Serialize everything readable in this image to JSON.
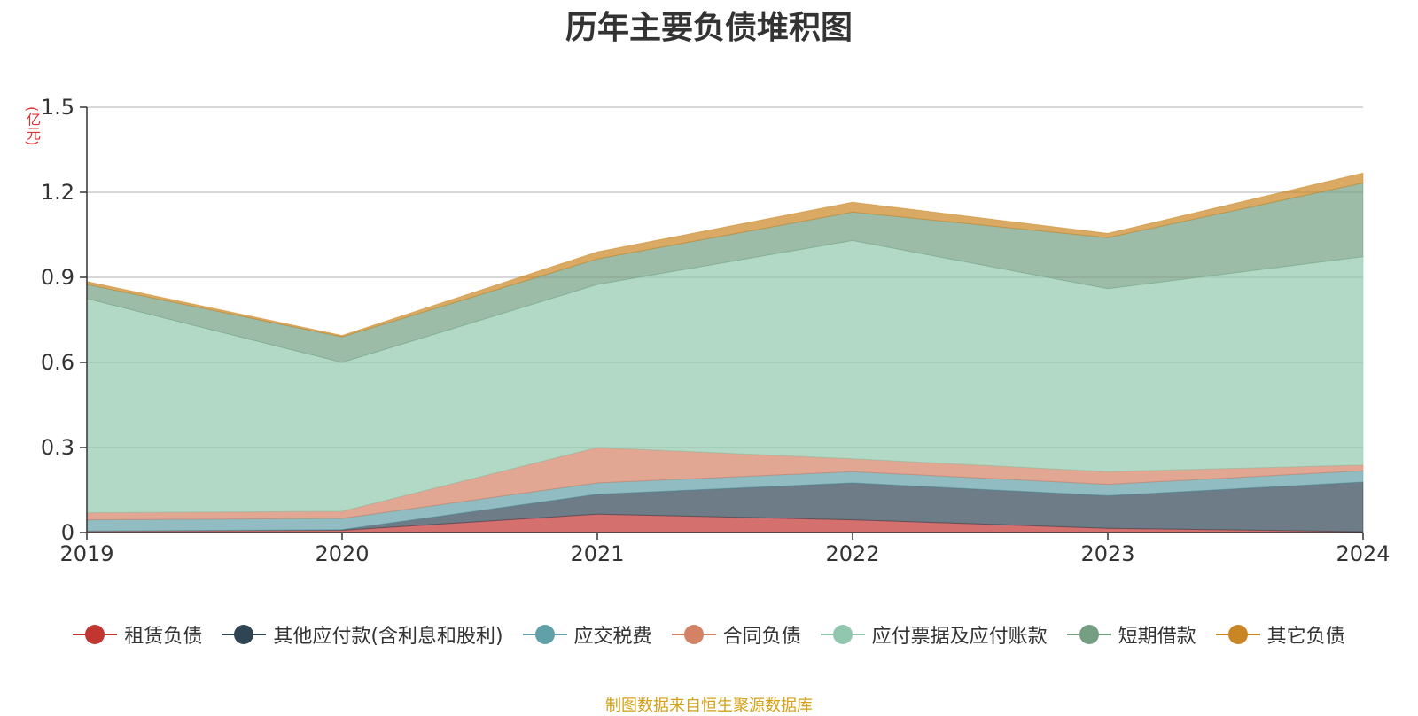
{
  "chart_data": {
    "type": "area",
    "stacked": true,
    "title": "历年主要负债堆积图",
    "unit": "(亿元)",
    "x": [
      "2019",
      "2020",
      "2021",
      "2022",
      "2023",
      "2024"
    ],
    "ylim": [
      0,
      1.5
    ],
    "yticks": [
      "0",
      "0.3",
      "0.6",
      "0.9",
      "1.2",
      "1.5"
    ],
    "grid": true,
    "legend_position": "bottom",
    "series": [
      {
        "name": "租赁负债",
        "color": "#c23531",
        "values": [
          0.005,
          0.008,
          0.065,
          0.045,
          0.015,
          0.003
        ]
      },
      {
        "name": "其他应付款(含利息和股利)",
        "color": "#2f4554",
        "values": [
          0.0,
          0.002,
          0.07,
          0.13,
          0.115,
          0.175
        ]
      },
      {
        "name": "应交税费",
        "color": "#61a0a8",
        "values": [
          0.04,
          0.04,
          0.04,
          0.04,
          0.04,
          0.04
        ]
      },
      {
        "name": "合同负债",
        "color": "#d48265",
        "values": [
          0.025,
          0.025,
          0.125,
          0.045,
          0.045,
          0.02
        ]
      },
      {
        "name": "应付票据及应付账款",
        "color": "#91c7ae",
        "values": [
          0.755,
          0.525,
          0.575,
          0.77,
          0.645,
          0.735
        ]
      },
      {
        "name": "短期借款",
        "color": "#749f83",
        "values": [
          0.05,
          0.09,
          0.09,
          0.1,
          0.18,
          0.26
        ]
      },
      {
        "name": "其它负债",
        "color": "#ca8622",
        "values": [
          0.01,
          0.005,
          0.025,
          0.035,
          0.015,
          0.035
        ]
      }
    ]
  },
  "source": "制图数据来自恒生聚源数据库"
}
